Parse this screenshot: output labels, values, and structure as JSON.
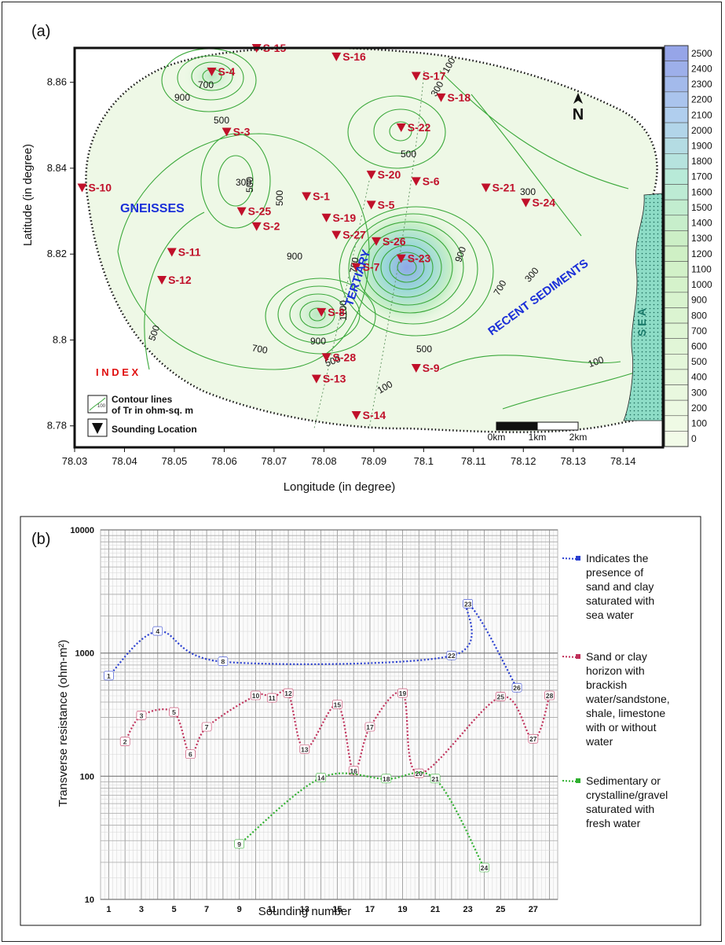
{
  "panel_a": {
    "label": "(a)",
    "xlabel": "Longitude (in degree)",
    "ylabel": "Latitude (in degree)",
    "x_ticks": [
      "78.03",
      "78.04",
      "78.05",
      "78.06",
      "78.07",
      "78.08",
      "78.09",
      "78.1",
      "78.11",
      "78.12",
      "78.13",
      "78.14"
    ],
    "y_ticks": [
      "8.86",
      "8.84",
      "8.82",
      "8.8",
      "8.78"
    ],
    "colorbar_ticks": [
      "2500",
      "2400",
      "2300",
      "2200",
      "2100",
      "2000",
      "1900",
      "1800",
      "1700",
      "1600",
      "1500",
      "1400",
      "1300",
      "1200",
      "1100",
      "1000",
      "900",
      "800",
      "700",
      "600",
      "500",
      "400",
      "300",
      "200",
      "100",
      "0"
    ],
    "north": "N",
    "region_labels": {
      "gneisses": "GNEISSES",
      "tertiary": "TERTIARY",
      "recent": "RECENT SEDIMENTS",
      "sea": "S E A"
    },
    "index_title": "I N D E X",
    "index_contour": "Contour lines of Tr in ohm-sq. m",
    "index_contour_l1": "Contour lines",
    "index_contour_l2": "of Tr in ohm-sq. m",
    "index_contour_icon_label": "100",
    "index_sounding": "Sounding Location",
    "scale": {
      "l0": "0km",
      "l1": "1km",
      "l2": "2km"
    },
    "contour_labels": [
      "900",
      "700",
      "500",
      "500",
      "300",
      "500",
      "1100",
      "900",
      "700",
      "500",
      "300",
      "100",
      "900",
      "700",
      "500",
      "300",
      "100",
      "500",
      "300",
      "100",
      "900",
      "700",
      "500"
    ],
    "stations": [
      "S-1",
      "S-2",
      "S-3",
      "S-4",
      "S-5",
      "S-6",
      "S-7",
      "S-8",
      "S-9",
      "S-10",
      "S-11",
      "S-12",
      "S-13",
      "S-14",
      "S-15",
      "S-16",
      "S-17",
      "S-18",
      "S-19",
      "S-20",
      "S-21",
      "S-22",
      "S-23",
      "S-24",
      "S-25",
      "S-26",
      "S-27",
      "S-28"
    ],
    "colors": {
      "map_bg": "#eef8e6",
      "contour": "#3aa83a",
      "station": "#c0102a",
      "region": "#1a2fd8",
      "index": "#e01010",
      "sea": "#7fd8c0"
    }
  },
  "panel_b": {
    "label": "(b)",
    "legend": [
      {
        "text": "Indicates the presence of sand and clay saturated with sea water",
        "lines": [
          "Indicates the",
          "presence of",
          "sand and clay",
          "saturated with",
          "sea water"
        ],
        "color": "#2a3fd0"
      },
      {
        "text": "Sand or clay horizon with brackish water/sandstone, shale, limestone with or without water",
        "lines": [
          "Sand or clay",
          "horizon with",
          "brackish",
          "water/sandstone,",
          "shale, limestone",
          "with or without",
          "water"
        ],
        "color": "#c0305a"
      },
      {
        "text": "Sedimentary or crystalline/gravel saturated with fresh water",
        "lines": [
          "Sedimentary or",
          "crystalline/gravel",
          "saturated with",
          "fresh water"
        ],
        "color": "#30b030"
      }
    ]
  },
  "chart_data": [
    {
      "type": "heatmap",
      "title": "",
      "xlabel": "Longitude (in degree)",
      "ylabel": "Latitude (in degree)",
      "xlim": [
        78.03,
        78.148
      ],
      "ylim": [
        8.775,
        8.868
      ],
      "colorbar": {
        "min": 0,
        "max": 2500,
        "step": 100
      },
      "stations": [
        {
          "name": "S-1",
          "lon": 78.0765,
          "lat": 8.8335
        },
        {
          "name": "S-2",
          "lon": 78.0665,
          "lat": 8.8265
        },
        {
          "name": "S-3",
          "lon": 78.0605,
          "lat": 8.8485
        },
        {
          "name": "S-4",
          "lon": 78.0575,
          "lat": 8.8625
        },
        {
          "name": "S-5",
          "lon": 78.0895,
          "lat": 8.8315
        },
        {
          "name": "S-6",
          "lon": 78.0985,
          "lat": 8.837
        },
        {
          "name": "S-7",
          "lon": 78.0865,
          "lat": 8.817
        },
        {
          "name": "S-8",
          "lon": 78.0795,
          "lat": 8.8065
        },
        {
          "name": "S-9",
          "lon": 78.0985,
          "lat": 8.7935
        },
        {
          "name": "S-10",
          "lon": 78.0315,
          "lat": 8.8355
        },
        {
          "name": "S-11",
          "lon": 78.0495,
          "lat": 8.8205
        },
        {
          "name": "S-12",
          "lon": 78.0475,
          "lat": 8.814
        },
        {
          "name": "S-13",
          "lon": 78.0785,
          "lat": 8.791
        },
        {
          "name": "S-14",
          "lon": 78.0865,
          "lat": 8.7825
        },
        {
          "name": "S-15",
          "lon": 78.0665,
          "lat": 8.868
        },
        {
          "name": "S-16",
          "lon": 78.0825,
          "lat": 8.866
        },
        {
          "name": "S-17",
          "lon": 78.0985,
          "lat": 8.8615
        },
        {
          "name": "S-18",
          "lon": 78.1035,
          "lat": 8.8565
        },
        {
          "name": "S-19",
          "lon": 78.0805,
          "lat": 8.8285
        },
        {
          "name": "S-20",
          "lon": 78.0895,
          "lat": 8.8385
        },
        {
          "name": "S-21",
          "lon": 78.1125,
          "lat": 8.8355
        },
        {
          "name": "S-22",
          "lon": 78.0955,
          "lat": 8.8495
        },
        {
          "name": "S-23",
          "lon": 78.0955,
          "lat": 8.819
        },
        {
          "name": "S-24",
          "lon": 78.1205,
          "lat": 8.832
        },
        {
          "name": "S-25",
          "lon": 78.0635,
          "lat": 8.83
        },
        {
          "name": "S-26",
          "lon": 78.0905,
          "lat": 8.823
        },
        {
          "name": "S-27",
          "lon": 78.0825,
          "lat": 8.8245
        },
        {
          "name": "S-28",
          "lon": 78.0805,
          "lat": 8.796
        }
      ]
    },
    {
      "type": "line",
      "title": "",
      "xlabel": "Sounding number",
      "ylabel": "Transverse resistance (ohm-m²)",
      "y_scale": "log",
      "ylim": [
        10,
        10000
      ],
      "xlim": [
        0.5,
        28.5
      ],
      "x_ticks": [
        1,
        3,
        5,
        7,
        9,
        11,
        13,
        15,
        17,
        19,
        21,
        23,
        25,
        27
      ],
      "y_ticks": [
        10,
        100,
        1000,
        10000
      ],
      "grid": true,
      "legend_position": "right",
      "series": [
        {
          "name": "Indicates the presence of sand and clay saturated with sea water",
          "color": "#2a3fd0",
          "points": [
            {
              "x": 1,
              "y": 650,
              "label": "1"
            },
            {
              "x": 4,
              "y": 1500,
              "label": "4"
            },
            {
              "x": 8,
              "y": 850,
              "label": "8"
            },
            {
              "x": 22,
              "y": 950,
              "label": "22"
            },
            {
              "x": 23,
              "y": 2500,
              "label": "23"
            },
            {
              "x": 26,
              "y": 520,
              "label": "26"
            }
          ]
        },
        {
          "name": "Sand or clay horizon with brackish water/sandstone, shale, limestone with or without water",
          "color": "#c0305a",
          "points": [
            {
              "x": 2,
              "y": 190,
              "label": "2"
            },
            {
              "x": 3,
              "y": 310,
              "label": "3"
            },
            {
              "x": 5,
              "y": 330,
              "label": "5"
            },
            {
              "x": 6,
              "y": 150,
              "label": "6"
            },
            {
              "x": 7,
              "y": 250,
              "label": "7"
            },
            {
              "x": 10,
              "y": 450,
              "label": "10"
            },
            {
              "x": 11,
              "y": 430,
              "label": "11"
            },
            {
              "x": 12,
              "y": 470,
              "label": "12"
            },
            {
              "x": 13,
              "y": 165,
              "label": "13"
            },
            {
              "x": 15,
              "y": 380,
              "label": "15"
            },
            {
              "x": 16,
              "y": 110,
              "label": "16"
            },
            {
              "x": 17,
              "y": 250,
              "label": "17"
            },
            {
              "x": 19,
              "y": 470,
              "label": "19"
            },
            {
              "x": 20,
              "y": 105,
              "label": "20"
            },
            {
              "x": 25,
              "y": 440,
              "label": "25"
            },
            {
              "x": 27,
              "y": 200,
              "label": "27"
            },
            {
              "x": 28,
              "y": 450,
              "label": "28"
            }
          ]
        },
        {
          "name": "Sedimentary or crystalline/gravel saturated with fresh water",
          "color": "#30b030",
          "points": [
            {
              "x": 9,
              "y": 28,
              "label": "9"
            },
            {
              "x": 14,
              "y": 97,
              "label": "14"
            },
            {
              "x": 18,
              "y": 95,
              "label": "18"
            },
            {
              "x": 21,
              "y": 95,
              "label": "21"
            },
            {
              "x": 24,
              "y": 18,
              "label": "24"
            }
          ]
        }
      ]
    }
  ]
}
